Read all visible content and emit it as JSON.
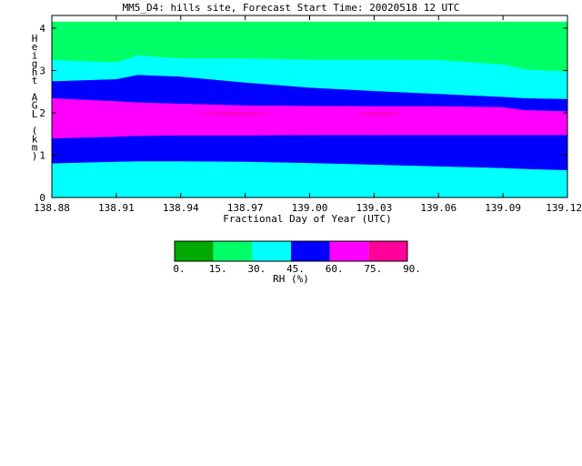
{
  "chart_data": {
    "type": "heatmap",
    "title": "MM5_D4: hills site,  Forecast Start Time: 20020518 12 UTC",
    "xlabel": "Fractional Day of Year (UTC)",
    "ylabel": "Height AGL (km)",
    "xlim": [
      138.88,
      139.12
    ],
    "ylim": [
      0,
      4.3
    ],
    "x_ticks": [
      "138.88",
      "138.91",
      "138.94",
      "138.97",
      "139.00",
      "139.03",
      "139.06",
      "139.09",
      "139.12"
    ],
    "y_ticks": [
      "0",
      "1",
      "2",
      "3",
      "4"
    ],
    "colorbar": {
      "label": "RH (%)",
      "ticks": [
        "0.",
        "15.",
        "30.",
        "45.",
        "60.",
        "75.",
        "90."
      ],
      "colors": [
        "#00aa00",
        "#00ff66",
        "#00ffff",
        "#0000ff",
        "#ff00ff",
        "#ff0099"
      ]
    },
    "x": [
      138.88,
      138.91,
      138.92,
      138.94,
      138.97,
      139.0,
      139.03,
      139.06,
      139.09,
      139.1,
      139.12
    ],
    "boundaries": [
      {
        "name": "30",
        "y": [
          0.81,
          0.85,
          0.86,
          0.86,
          0.85,
          0.82,
          0.78,
          0.74,
          0.7,
          0.68,
          0.65
        ]
      },
      {
        "name": "45",
        "y": [
          1.4,
          1.44,
          1.46,
          1.47,
          1.47,
          1.48,
          1.48,
          1.48,
          1.48,
          1.48,
          1.48
        ]
      },
      {
        "name": "60",
        "y": [
          2.35,
          2.28,
          2.25,
          2.22,
          2.18,
          2.17,
          2.16,
          2.16,
          2.14,
          2.07,
          2.04
        ]
      },
      {
        "name": "45",
        "y": [
          2.75,
          2.8,
          2.9,
          2.86,
          2.72,
          2.6,
          2.52,
          2.45,
          2.38,
          2.35,
          2.33
        ]
      },
      {
        "name": "30",
        "y": [
          3.25,
          3.2,
          3.36,
          3.29,
          3.29,
          3.26,
          3.26,
          3.25,
          3.15,
          3.03,
          2.98
        ]
      },
      {
        "name": "15",
        "y": [
          4.15,
          4.15,
          4.15,
          4.15,
          4.15,
          4.15,
          4.15,
          4.15,
          4.15,
          4.15,
          4.15
        ]
      }
    ],
    "bands": [
      {
        "range": "30-45",
        "color": "#00ffff"
      },
      {
        "range": "45-60",
        "color": "#0000ff"
      },
      {
        "range": "60-75",
        "color": "#ff00ff"
      },
      {
        "range": "45-60",
        "color": "#0000ff"
      },
      {
        "range": "30-45",
        "color": "#00ffff"
      },
      {
        "range": "15-30",
        "color": "#00ff66"
      }
    ],
    "highlights": [
      {
        "range": "75-90",
        "color": "#ff0099",
        "x": [
          138.945,
          138.985
        ],
        "y": 1.98
      },
      {
        "range": "75-90",
        "color": "#ff0099",
        "x": [
          139.02,
          139.045
        ],
        "y": 1.98
      }
    ]
  }
}
